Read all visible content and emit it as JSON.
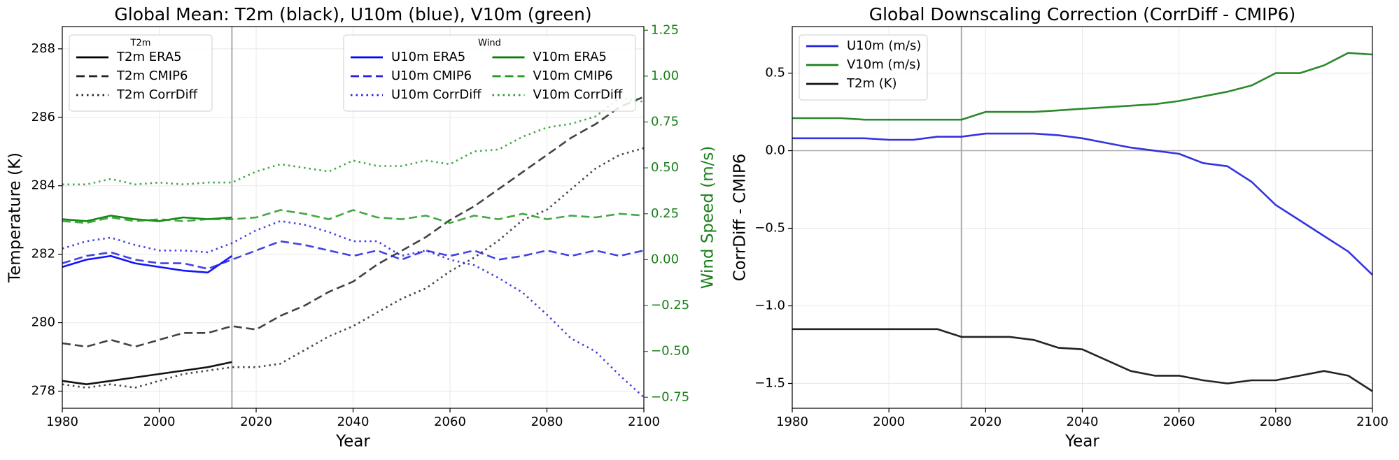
{
  "chart_data": [
    {
      "type": "line",
      "title": "Global Mean: T2m (black), U10m (blue), V10m (green)",
      "xlabel": "Year",
      "ylabel": "Temperature (K)",
      "y2label": "Wind Speed (m/s)",
      "y2color": "#1a7f1a",
      "x": [
        1980,
        1985,
        1990,
        1995,
        2000,
        2005,
        2010,
        2015,
        2020,
        2025,
        2030,
        2035,
        2040,
        2045,
        2050,
        2055,
        2060,
        2065,
        2070,
        2075,
        2080,
        2085,
        2090,
        2095,
        2100
      ],
      "xlim": [
        1980,
        2100
      ],
      "xticks": [
        1980,
        2000,
        2020,
        2040,
        2060,
        2080,
        2100
      ],
      "ylim": [
        277.5,
        288.65
      ],
      "yticks": [
        278,
        280,
        282,
        284,
        286,
        288
      ],
      "y2lim": [
        -0.81,
        1.27
      ],
      "y2ticks": [
        {
          "value": -0.75,
          "label": "−0.75"
        },
        {
          "value": -0.5,
          "label": "−0.50"
        },
        {
          "value": -0.25,
          "label": "−0.25"
        },
        {
          "value": 0,
          "label": "0.00"
        },
        0.25,
        {
          "value": 0.5,
          "label": "0.50"
        },
        0.75,
        {
          "value": 1,
          "label": "1.00"
        },
        1.25
      ],
      "grid": true,
      "vline": 2015,
      "legends": [
        {
          "title": "T2m",
          "loc": "upper left",
          "ncol": 1
        },
        {
          "title": "Wind",
          "loc": "upper right",
          "ncol": 2
        }
      ],
      "series": [
        {
          "name": "T2m ERA5",
          "color": "#000000",
          "dash": "solid",
          "axis": "y",
          "values": [
            278.3,
            278.2,
            278.3,
            278.4,
            278.5,
            278.6,
            278.7,
            278.85,
            null,
            null,
            null,
            null,
            null,
            null,
            null,
            null,
            null,
            null,
            null,
            null,
            null,
            null,
            null,
            null,
            null
          ]
        },
        {
          "name": "T2m CMIP6",
          "color": "#222222",
          "dash": "dashed",
          "axis": "y",
          "values": [
            279.4,
            279.3,
            279.5,
            279.3,
            279.5,
            279.7,
            279.7,
            279.9,
            279.8,
            280.2,
            280.5,
            280.9,
            281.2,
            281.7,
            282.1,
            282.5,
            283.0,
            283.4,
            283.9,
            284.4,
            284.9,
            285.4,
            285.8,
            286.3,
            286.6
          ]
        },
        {
          "name": "T2m CorrDiff",
          "color": "#222222",
          "dash": "dotted",
          "axis": "y",
          "values": [
            278.2,
            278.1,
            278.2,
            278.1,
            278.3,
            278.5,
            278.6,
            278.7,
            278.7,
            278.8,
            279.2,
            279.6,
            279.9,
            280.3,
            280.7,
            281.0,
            281.5,
            281.9,
            282.4,
            283.0,
            283.3,
            283.9,
            284.5,
            284.9,
            285.1
          ]
        },
        {
          "name": "U10m ERA5",
          "color": "#0000ff",
          "dash": "solid",
          "axis": "y2",
          "values": [
            -0.04,
            0.0,
            0.02,
            -0.02,
            -0.04,
            -0.06,
            -0.07,
            0.02,
            null,
            null,
            null,
            null,
            null,
            null,
            null,
            null,
            null,
            null,
            null,
            null,
            null,
            null,
            null,
            null,
            null
          ]
        },
        {
          "name": "U10m CMIP6",
          "color": "#2222dd",
          "dash": "dashed",
          "axis": "y2",
          "values": [
            -0.02,
            0.02,
            0.04,
            0.0,
            -0.02,
            -0.02,
            -0.05,
            0.0,
            0.05,
            0.1,
            0.08,
            0.05,
            0.02,
            0.05,
            0.0,
            0.05,
            0.02,
            0.05,
            0.0,
            0.02,
            0.05,
            0.02,
            0.05,
            0.02,
            0.05
          ]
        },
        {
          "name": "U10m CorrDiff",
          "color": "#2222dd",
          "dash": "dotted",
          "axis": "y2",
          "values": [
            0.06,
            0.1,
            0.12,
            0.08,
            0.05,
            0.05,
            0.04,
            0.09,
            0.16,
            0.21,
            0.19,
            0.15,
            0.1,
            0.1,
            0.02,
            0.05,
            0.0,
            -0.03,
            -0.1,
            -0.18,
            -0.3,
            -0.43,
            -0.5,
            -0.63,
            -0.75
          ]
        },
        {
          "name": "V10m ERA5",
          "color": "#007f00",
          "dash": "solid",
          "axis": "y2",
          "values": [
            0.22,
            0.21,
            0.24,
            0.22,
            0.21,
            0.23,
            0.22,
            0.23,
            null,
            null,
            null,
            null,
            null,
            null,
            null,
            null,
            null,
            null,
            null,
            null,
            null,
            null,
            null,
            null,
            null
          ]
        },
        {
          "name": "V10m CMIP6",
          "color": "#229922",
          "dash": "dashed",
          "axis": "y2",
          "values": [
            0.21,
            0.2,
            0.23,
            0.21,
            0.22,
            0.21,
            0.22,
            0.22,
            0.23,
            0.27,
            0.25,
            0.22,
            0.27,
            0.23,
            0.22,
            0.24,
            0.2,
            0.24,
            0.22,
            0.25,
            0.22,
            0.24,
            0.23,
            0.25,
            0.24
          ]
        },
        {
          "name": "V10m CorrDiff",
          "color": "#229922",
          "dash": "dotted",
          "axis": "y2",
          "values": [
            0.41,
            0.41,
            0.44,
            0.41,
            0.42,
            0.41,
            0.42,
            0.42,
            0.48,
            0.52,
            0.5,
            0.48,
            0.54,
            0.51,
            0.51,
            0.54,
            0.52,
            0.59,
            0.6,
            0.67,
            0.72,
            0.74,
            0.78,
            0.88,
            0.86
          ]
        }
      ]
    },
    {
      "type": "line",
      "title": "Global Downscaling Correction (CorrDiff - CMIP6)",
      "xlabel": "Year",
      "ylabel": "CorrDiff - CMIP6",
      "x": [
        1980,
        1985,
        1990,
        1995,
        2000,
        2005,
        2010,
        2015,
        2020,
        2025,
        2030,
        2035,
        2040,
        2045,
        2050,
        2055,
        2060,
        2065,
        2070,
        2075,
        2080,
        2085,
        2090,
        2095,
        2100
      ],
      "xlim": [
        1980,
        2100
      ],
      "xticks": [
        1980,
        2000,
        2020,
        2040,
        2060,
        2080,
        2100
      ],
      "ylim": [
        -1.66,
        0.8
      ],
      "yticks": [
        {
          "value": -1.5,
          "label": "−1.5"
        },
        {
          "value": -1,
          "label": "−1.0"
        },
        {
          "value": -0.5,
          "label": "−0.5"
        },
        {
          "value": 0,
          "label": "0.0"
        },
        0.5
      ],
      "grid": true,
      "vline": 2015,
      "hline": 0,
      "legends": [
        {
          "loc": "upper left",
          "ncol": 1
        }
      ],
      "series": [
        {
          "name": "U10m (m/s)",
          "color": "#2222dd",
          "dash": "solid",
          "axis": "y",
          "values": [
            0.08,
            0.08,
            0.08,
            0.08,
            0.07,
            0.07,
            0.09,
            0.09,
            0.11,
            0.11,
            0.11,
            0.1,
            0.08,
            0.05,
            0.02,
            0.0,
            -0.02,
            -0.08,
            -0.1,
            -0.2,
            -0.35,
            -0.45,
            -0.55,
            -0.65,
            -0.8
          ]
        },
        {
          "name": "V10m (m/s)",
          "color": "#1a7f1a",
          "dash": "solid",
          "axis": "y",
          "values": [
            0.21,
            0.21,
            0.21,
            0.2,
            0.2,
            0.2,
            0.2,
            0.2,
            0.25,
            0.25,
            0.25,
            0.26,
            0.27,
            0.28,
            0.29,
            0.3,
            0.32,
            0.35,
            0.38,
            0.42,
            0.5,
            0.5,
            0.55,
            0.63,
            0.62
          ]
        },
        {
          "name": "T2m (K)",
          "color": "#111111",
          "dash": "solid",
          "axis": "y",
          "values": [
            -1.15,
            -1.15,
            -1.15,
            -1.15,
            -1.15,
            -1.15,
            -1.15,
            -1.2,
            -1.2,
            -1.2,
            -1.22,
            -1.27,
            -1.28,
            -1.35,
            -1.42,
            -1.45,
            -1.45,
            -1.48,
            -1.5,
            -1.48,
            -1.48,
            -1.45,
            -1.42,
            -1.45,
            -1.55
          ]
        }
      ]
    }
  ]
}
